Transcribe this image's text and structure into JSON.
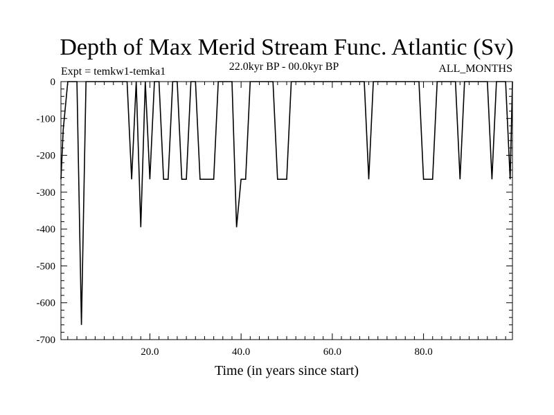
{
  "chart_data": {
    "type": "line",
    "title": "Depth of Max Merid Stream Func. Atlantic (Sv)",
    "subtitle_left": "Expt = temkw1-temka1",
    "subtitle_center": "22.0kyr BP - 00.0kyr BP",
    "subtitle_right": "ALL_MONTHS",
    "xlabel": "Time (in years since start)",
    "ylabel": "",
    "xlim": [
      0.5,
      99.5
    ],
    "ylim": [
      -700,
      0
    ],
    "x_ticks": [
      20,
      40,
      60,
      80
    ],
    "x_tick_labels": [
      "20.0",
      "40.0",
      "60.0",
      "80.0"
    ],
    "y_ticks": [
      0,
      -100,
      -200,
      -300,
      -400,
      -500,
      -600,
      -700
    ],
    "y_tick_labels": [
      "0",
      "-100",
      "-200",
      "-300",
      "-400",
      "-500",
      "-600",
      "-700"
    ],
    "grid": false,
    "series": [
      {
        "color": "#000000",
        "x": [
          0.5,
          1,
          2,
          3,
          4,
          5,
          6,
          7,
          8,
          9,
          10,
          11,
          12,
          13,
          14,
          15,
          16,
          17,
          18,
          19,
          20,
          21,
          22,
          23,
          24,
          25,
          26,
          27,
          28,
          29,
          30,
          31,
          32,
          33,
          34,
          35,
          36,
          37,
          38,
          39,
          40,
          41,
          42,
          43,
          44,
          45,
          46,
          47,
          48,
          49,
          50,
          51,
          52,
          53,
          54,
          55,
          56,
          57,
          58,
          59,
          60,
          61,
          62,
          63,
          64,
          65,
          66,
          67,
          68,
          69,
          70,
          71,
          72,
          73,
          74,
          75,
          76,
          77,
          78,
          79,
          80,
          81,
          82,
          83,
          84,
          85,
          86,
          87,
          88,
          89,
          90,
          91,
          92,
          93,
          94,
          95,
          96,
          97,
          98,
          99,
          99.5
        ],
        "y": [
          -265,
          -130,
          0,
          0,
          0,
          -660,
          0,
          0,
          0,
          0,
          0,
          0,
          0,
          0,
          0,
          0,
          -265,
          0,
          -395,
          0,
          -265,
          0,
          0,
          -265,
          -265,
          0,
          0,
          -265,
          -265,
          0,
          0,
          -265,
          -265,
          -265,
          -265,
          0,
          0,
          0,
          0,
          -395,
          -265,
          -265,
          0,
          0,
          0,
          0,
          0,
          0,
          -265,
          -265,
          -265,
          0,
          0,
          0,
          0,
          0,
          0,
          0,
          0,
          0,
          0,
          0,
          0,
          0,
          0,
          0,
          0,
          0,
          -265,
          0,
          0,
          0,
          0,
          0,
          0,
          0,
          0,
          0,
          0,
          0,
          -265,
          -265,
          -265,
          0,
          0,
          0,
          0,
          0,
          -265,
          0,
          0,
          0,
          0,
          0,
          0,
          -265,
          0,
          0,
          0,
          -265,
          0
        ]
      }
    ]
  }
}
